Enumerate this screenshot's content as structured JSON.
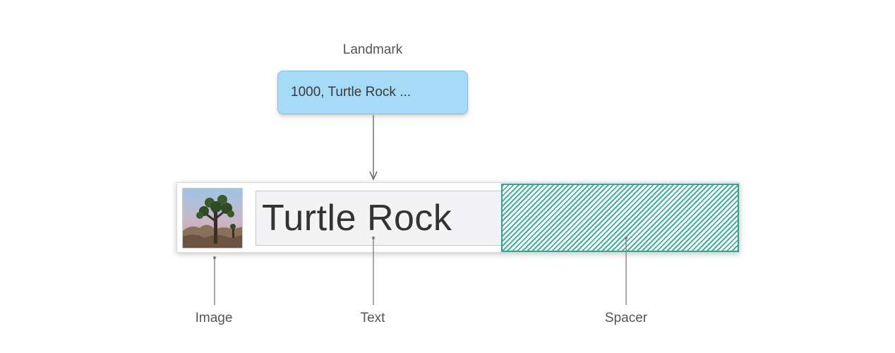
{
  "diagram": {
    "parent_label": "Landmark",
    "model_text": "1000, Turtle Rock ...",
    "row": {
      "text_value": "Turtle Rock"
    },
    "callouts": {
      "image": "Image",
      "text": "Text",
      "spacer": "Spacer"
    },
    "colors": {
      "model_box": "#a7daf6",
      "spacer_stripes": "#3fae9b",
      "arrows": "#7a7a7a"
    }
  }
}
